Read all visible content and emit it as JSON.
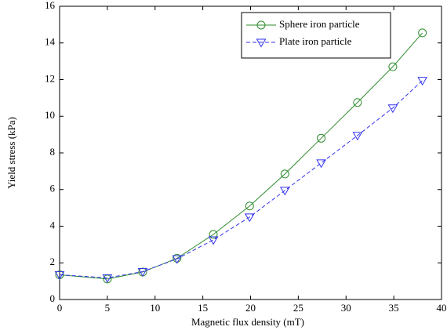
{
  "chart_data": {
    "type": "line",
    "xlabel": "Magnetic flux density (mT)",
    "ylabel": "Yield stress (kPa)",
    "x": [
      0,
      5,
      8.7,
      12.3,
      16.1,
      19.9,
      23.6,
      27.4,
      31.2,
      34.9,
      38
    ],
    "series": [
      {
        "name": "Sphere iron particle",
        "color": "#2e8b2e",
        "linestyle": "solid",
        "marker": "o",
        "values": [
          1.35,
          1.12,
          1.5,
          2.25,
          3.55,
          5.1,
          6.85,
          8.8,
          10.75,
          12.7,
          14.55
        ]
      },
      {
        "name": "Plate iron particle",
        "color": "#3333ee",
        "linestyle": "dashed",
        "marker": "v",
        "values": [
          1.35,
          1.18,
          1.52,
          2.22,
          3.25,
          4.5,
          5.95,
          7.45,
          8.95,
          10.45,
          11.95
        ]
      }
    ],
    "xlim": [
      0,
      40
    ],
    "xticks": [
      0,
      5,
      10,
      15,
      20,
      25,
      30,
      35,
      40
    ],
    "ylim": [
      0,
      16
    ],
    "yticks": [
      0,
      2,
      4,
      6,
      8,
      10,
      12,
      14,
      16
    ],
    "grid": false,
    "legend": "upper right"
  }
}
